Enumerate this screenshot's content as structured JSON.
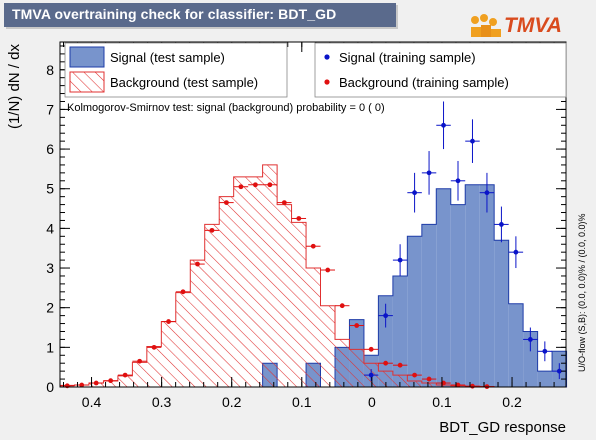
{
  "header": {
    "title": "TMVA overtraining check for classifier: BDT_GD",
    "logo_text": "TMVA"
  },
  "colors": {
    "signal_fill": "#7894cc",
    "signal_line": "#1e3ca8",
    "signal_points": "#0a14c8",
    "background_hatch": "#e03030",
    "background_points": "#e01010",
    "title_box": "#5a6a8c"
  },
  "chart_data": {
    "type": "histogram",
    "xlabel": "BDT_GD response",
    "ylabel": "(1/N) dN / dx",
    "xlim": [
      -0.445,
      0.277
    ],
    "ylim": [
      0,
      8.7
    ],
    "x_ticks": [
      -0.4,
      -0.3,
      -0.2,
      -0.1,
      0,
      0.1,
      0.2
    ],
    "x_tick_labels": [
      "0.4",
      "0.3",
      "0.2",
      "0.1",
      "0",
      "0.1",
      "0.2"
    ],
    "y_ticks": [
      0,
      1,
      2,
      3,
      4,
      5,
      6,
      7,
      8
    ],
    "legend": [
      {
        "label": "Signal (test sample)",
        "style": "fill"
      },
      {
        "label": "Background (test sample)",
        "style": "hatch"
      },
      {
        "label": "Signal (training sample)",
        "style": "marker"
      },
      {
        "label": "Background (training sample)",
        "style": "marker"
      }
    ],
    "ks_text": "Kolmogorov-Smirnov test: signal (background) probability =     0 (    0)",
    "overflow_text": "U/O-flow (S,B): (0.0, 0.0)% / (0.0, 0.0)%",
    "bin_edges": [
      -0.445,
      -0.4243,
      -0.4037,
      -0.383,
      -0.3624,
      -0.3417,
      -0.3211,
      -0.3004,
      -0.2798,
      -0.2591,
      -0.2385,
      -0.2178,
      -0.1972,
      -0.1765,
      -0.1559,
      -0.1352,
      -0.1146,
      -0.0939,
      -0.0733,
      -0.0526,
      -0.032,
      -0.0113,
      0.0093,
      0.03,
      0.0506,
      0.0713,
      0.0919,
      0.1126,
      0.1332,
      0.1539,
      0.1745,
      0.1952,
      0.2158,
      0.2365,
      0.2571,
      0.2778
    ],
    "series": [
      {
        "name": "Signal (test sample)",
        "values": [
          0,
          0,
          0,
          0,
          0,
          0,
          0,
          0,
          0,
          0,
          0,
          0,
          0,
          0,
          0.6,
          0,
          0,
          0.6,
          0,
          1.0,
          1.7,
          0.8,
          2.3,
          2.8,
          3.8,
          4.1,
          5.0,
          4.6,
          5.1,
          5.1,
          3.7,
          2.1,
          1.4,
          0.4,
          0.9
        ]
      },
      {
        "name": "Background (test sample)",
        "values": [
          0.04,
          0.05,
          0.1,
          0.15,
          0.28,
          0.62,
          1.02,
          1.65,
          2.38,
          3.2,
          4.1,
          4.8,
          5.3,
          5.3,
          5.6,
          4.6,
          4.15,
          3.0,
          2.05,
          1.2,
          0.95,
          0.6,
          0.4,
          0.3,
          0.15,
          0.1,
          0.05,
          0.03,
          0.02,
          0.01,
          0,
          0,
          0,
          0,
          0
        ]
      },
      {
        "name": "Signal (training sample)",
        "values": [
          null,
          null,
          null,
          null,
          null,
          null,
          null,
          null,
          null,
          null,
          null,
          null,
          null,
          null,
          null,
          null,
          null,
          null,
          null,
          null,
          null,
          0.3,
          1.8,
          3.2,
          4.9,
          5.4,
          6.6,
          5.2,
          6.2,
          4.9,
          4.1,
          3.4,
          1.2,
          0.9,
          0.4
        ],
        "errors": [
          0,
          0,
          0,
          0,
          0,
          0,
          0,
          0,
          0,
          0,
          0,
          0,
          0,
          0,
          0,
          0,
          0,
          0,
          0,
          0,
          0,
          0.15,
          0.3,
          0.4,
          0.5,
          0.55,
          0.6,
          0.5,
          0.55,
          0.5,
          0.45,
          0.4,
          0.3,
          0.25,
          0.2
        ]
      },
      {
        "name": "Background (training sample)",
        "values": [
          0.03,
          0.05,
          0.1,
          0.16,
          0.3,
          0.65,
          1.0,
          1.65,
          2.4,
          3.1,
          3.95,
          4.65,
          5.05,
          5.1,
          5.1,
          4.65,
          4.25,
          3.55,
          2.95,
          2.05,
          1.55,
          0.95,
          0.6,
          0.55,
          0.3,
          0.2,
          0.1,
          0.05,
          0.02,
          0.01,
          null,
          null,
          null,
          null,
          null
        ]
      }
    ]
  }
}
